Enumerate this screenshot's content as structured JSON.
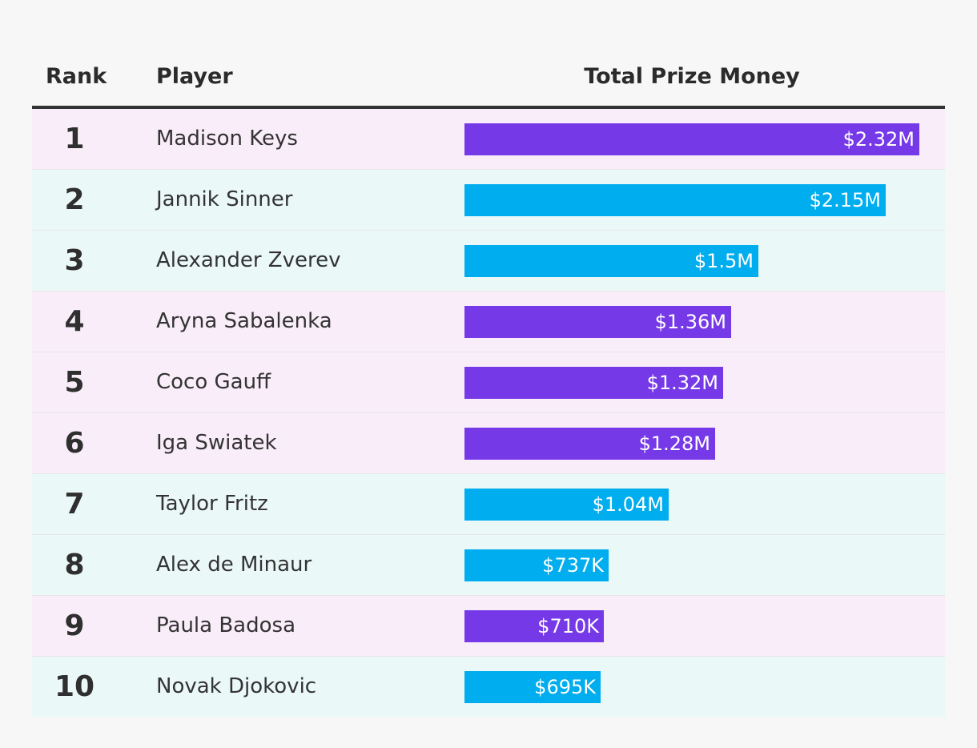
{
  "colors": {
    "women": "#7639e8",
    "men": "#00adee",
    "women_row_bg": "#f8edf8",
    "men_row_bg": "#ebf8f8"
  },
  "header": {
    "rank": "Rank",
    "player": "Player",
    "money": "Total Prize Money"
  },
  "chart_data": {
    "type": "bar",
    "orientation": "horizontal",
    "title": "",
    "columns": [
      "Rank",
      "Player",
      "Total Prize Money"
    ],
    "value_unit": "USD",
    "xlim": [
      0,
      2320000
    ],
    "rows": [
      {
        "rank": "1",
        "player": "Madison Keys",
        "value": 2320000,
        "label": "$2.32M",
        "group": "women"
      },
      {
        "rank": "2",
        "player": "Jannik Sinner",
        "value": 2150000,
        "label": "$2.15M",
        "group": "men"
      },
      {
        "rank": "3",
        "player": "Alexander Zverev",
        "value": 1500000,
        "label": "$1.5M",
        "group": "men"
      },
      {
        "rank": "4",
        "player": "Aryna Sabalenka",
        "value": 1360000,
        "label": "$1.36M",
        "group": "women"
      },
      {
        "rank": "5",
        "player": "Coco Gauff",
        "value": 1320000,
        "label": "$1.32M",
        "group": "women"
      },
      {
        "rank": "6",
        "player": "Iga Swiatek",
        "value": 1280000,
        "label": "$1.28M",
        "group": "women"
      },
      {
        "rank": "7",
        "player": "Taylor Fritz",
        "value": 1040000,
        "label": "$1.04M",
        "group": "men"
      },
      {
        "rank": "8",
        "player": "Alex de Minaur",
        "value": 737000,
        "label": "$737K",
        "group": "men"
      },
      {
        "rank": "9",
        "player": "Paula Badosa",
        "value": 710000,
        "label": "$710K",
        "group": "women"
      },
      {
        "rank": "10",
        "player": "Novak Djokovic",
        "value": 695000,
        "label": "$695K",
        "group": "men"
      }
    ]
  }
}
